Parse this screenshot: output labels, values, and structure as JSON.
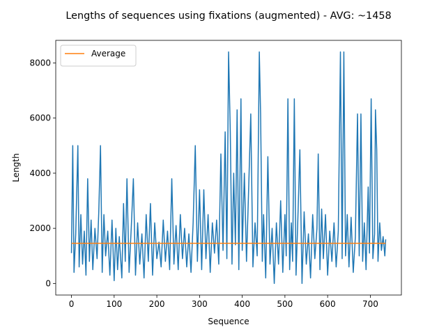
{
  "chart_data": {
    "type": "line",
    "title": "Lengths of sequences using fixations (augmented) - AVG: ~1458",
    "x_label": "Sequence",
    "y_label": "Length",
    "xlim": [
      -36.8,
      772.8
    ],
    "ylim": [
      -420,
      8820
    ],
    "xticks": [
      0,
      100,
      200,
      300,
      400,
      500,
      600,
      700
    ],
    "yticks": [
      0,
      2000,
      4000,
      6000,
      8000
    ],
    "legend": "upper left",
    "series": [
      {
        "color": "#1f77b4",
        "x": [
          0,
          3,
          6,
          10,
          15,
          18,
          22,
          26,
          30,
          34,
          38,
          42,
          46,
          50,
          55,
          60,
          64,
          68,
          72,
          76,
          80,
          85,
          90,
          95,
          100,
          104,
          108,
          112,
          118,
          122,
          126,
          130,
          135,
          140,
          145,
          150,
          155,
          160,
          165,
          170,
          175,
          180,
          185,
          190,
          195,
          200,
          205,
          210,
          215,
          220,
          225,
          230,
          235,
          240,
          245,
          250,
          255,
          260,
          265,
          270,
          275,
          280,
          285,
          290,
          295,
          300,
          305,
          310,
          315,
          320,
          325,
          330,
          335,
          340,
          345,
          350,
          355,
          360,
          364,
          368,
          372,
          376,
          380,
          384,
          388,
          392,
          397,
          400,
          405,
          410,
          415,
          420,
          425,
          430,
          435,
          440,
          443,
          447,
          450,
          455,
          460,
          465,
          470,
          475,
          480,
          485,
          490,
          495,
          500,
          503,
          507,
          511,
          515,
          518,
          522,
          526,
          530,
          535,
          540,
          545,
          550,
          555,
          560,
          565,
          570,
          575,
          578,
          582,
          586,
          590,
          595,
          600,
          605,
          610,
          615,
          620,
          625,
          630,
          634,
          638,
          642,
          646,
          650,
          655,
          660,
          665,
          670,
          674,
          678,
          682,
          686,
          690,
          695,
          698,
          702,
          706,
          710,
          712,
          715,
          718,
          722,
          726,
          730,
          734,
          736
        ],
        "values": [
          1100,
          5000,
          400,
          1800,
          5000,
          600,
          2500,
          700,
          1900,
          300,
          3800,
          800,
          2300,
          500,
          2000,
          900,
          2600,
          5000,
          400,
          2500,
          1000,
          1900,
          300,
          2300,
          100,
          2000,
          500,
          1700,
          200,
          2900,
          800,
          3800,
          400,
          2000,
          3800,
          300,
          2200,
          700,
          1800,
          200,
          2500,
          800,
          2900,
          300,
          2200,
          900,
          1500,
          600,
          2300,
          800,
          1900,
          500,
          3800,
          700,
          2100,
          500,
          2500,
          900,
          2000,
          600,
          1800,
          400,
          2200,
          5000,
          800,
          3400,
          500,
          3400,
          900,
          2500,
          400,
          2200,
          1100,
          2300,
          700,
          4700,
          1200,
          5500,
          900,
          8400,
          5500,
          700,
          4000,
          1400,
          6300,
          500,
          6700,
          1200,
          4000,
          800,
          3400,
          6150,
          600,
          2200,
          1000,
          8400,
          6150,
          800,
          2500,
          200,
          4600,
          700,
          2000,
          0,
          2200,
          700,
          3000,
          400,
          2500,
          1000,
          6700,
          500,
          2200,
          800,
          6700,
          300,
          2200,
          4850,
          0,
          2600,
          700,
          1800,
          200,
          2500,
          900,
          2000,
          4700,
          500,
          2700,
          900,
          2500,
          300,
          1900,
          800,
          2200,
          600,
          1900,
          8400,
          900,
          8400,
          1000,
          2500,
          600,
          2400,
          400,
          1700,
          6150,
          1000,
          6150,
          800,
          2200,
          500,
          3500,
          1100,
          6700,
          900,
          1800,
          6300,
          4850,
          800,
          2200,
          1200,
          1700,
          1000,
          1600
        ]
      },
      {
        "name": "Average",
        "color": "#ff7f0e",
        "x": [
          0,
          736
        ],
        "values": [
          1458,
          1458
        ]
      }
    ]
  }
}
